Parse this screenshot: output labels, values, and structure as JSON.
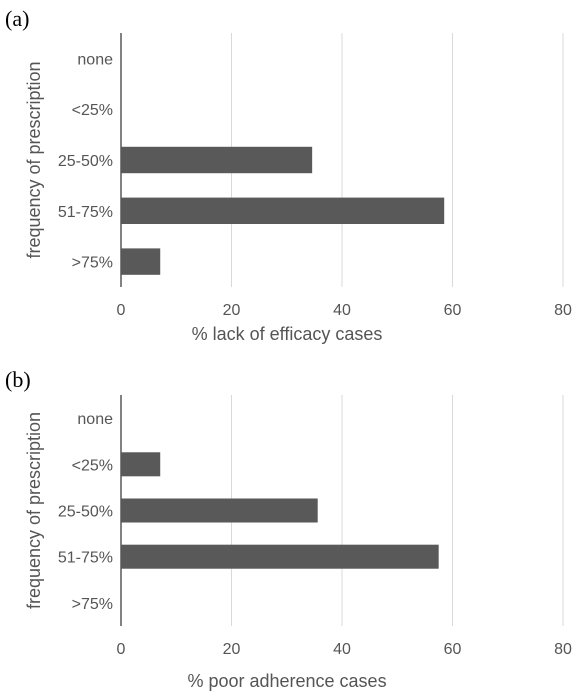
{
  "chart_data": [
    {
      "type": "bar",
      "orientation": "horizontal",
      "panel_label": "(a)",
      "categories": [
        "none",
        "<25%",
        "25-50%",
        "51-75%",
        ">75%"
      ],
      "values": [
        0,
        0,
        34.6,
        58.5,
        7.1
      ],
      "xlabel": "% lack of efficacy cases",
      "ylabel": "frequency of prescription",
      "xlim": [
        0,
        80
      ],
      "xticks": [
        "0",
        "20",
        "40",
        "60",
        "80"
      ],
      "grid": "vertical",
      "bar_color": "#595959"
    },
    {
      "type": "bar",
      "orientation": "horizontal",
      "panel_label": "(b)",
      "categories": [
        "none",
        "<25%",
        "25-50%",
        "51-75%",
        ">75%"
      ],
      "values": [
        0,
        7.1,
        35.6,
        57.5,
        0
      ],
      "xlabel": "% poor adherence cases",
      "ylabel": "frequency of prescription",
      "xlim": [
        0,
        80
      ],
      "xticks": [
        "0",
        "20",
        "40",
        "60",
        "80"
      ],
      "grid": "vertical",
      "bar_color": "#595959"
    }
  ]
}
